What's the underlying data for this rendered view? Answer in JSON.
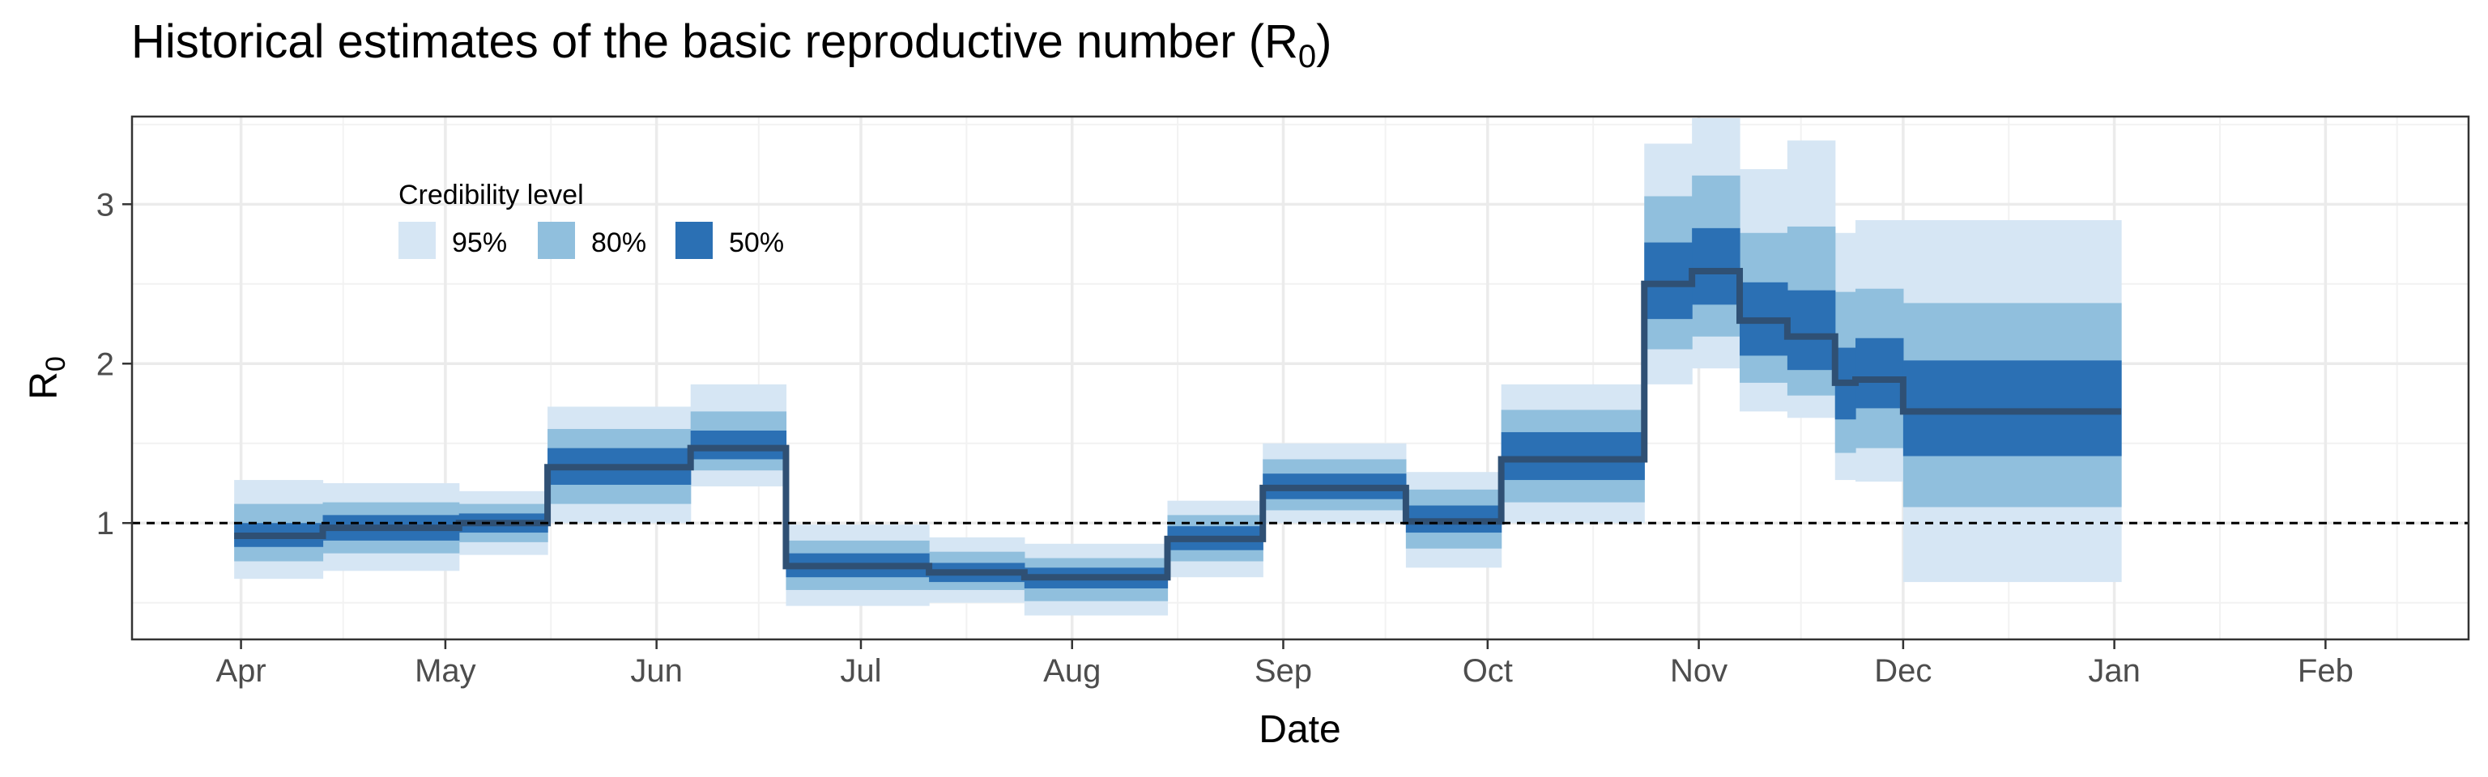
{
  "chart_data": {
    "type": "area",
    "title_text": "Historical estimates of the basic reproductive number (R",
    "title_subscript": "0",
    "title_close": ")",
    "xlabel": "Date",
    "ylabel_main": "R",
    "ylabel_sub": "0",
    "x_ticks": [
      "Apr",
      "May",
      "Jun",
      "Jul",
      "Aug",
      "Sep",
      "Oct",
      "Nov",
      "Dec",
      "Jan",
      "Feb"
    ],
    "y_ticks": [
      1,
      2,
      3
    ],
    "ylim": [
      0.27,
      3.55
    ],
    "reference_line": 1,
    "grid": true,
    "legend": {
      "title": "Credibility level",
      "position": "top-left",
      "items": [
        {
          "label": "95%",
          "color": "#d6e6f4"
        },
        {
          "label": "80%",
          "color": "#90bfdd"
        },
        {
          "label": "50%",
          "color": "#2b70b4"
        }
      ]
    },
    "colors": {
      "median": "#2f5074",
      "ci95": "#d6e6f4",
      "ci80": "#90bfdd",
      "ci50": "#2b70b4"
    },
    "series": [
      {
        "start": "Mar 31",
        "end": "Apr 13",
        "median": 0.92,
        "lo95": 0.65,
        "hi95": 1.27,
        "lo80": 0.76,
        "hi80": 1.12,
        "lo50": 0.85,
        "hi50": 1.0
      },
      {
        "start": "Apr 13",
        "end": "May 3",
        "median": 0.97,
        "lo95": 0.7,
        "hi95": 1.25,
        "lo80": 0.81,
        "hi80": 1.13,
        "lo50": 0.89,
        "hi50": 1.05
      },
      {
        "start": "May 3",
        "end": "May 16",
        "median": 1.0,
        "lo95": 0.8,
        "hi95": 1.2,
        "lo80": 0.88,
        "hi80": 1.12,
        "lo50": 0.94,
        "hi50": 1.06
      },
      {
        "start": "May 16",
        "end": "Jun 6",
        "median": 1.35,
        "lo95": 1.0,
        "hi95": 1.73,
        "lo80": 1.12,
        "hi80": 1.59,
        "lo50": 1.24,
        "hi50": 1.47
      },
      {
        "start": "Jun 6",
        "end": "Jun 20",
        "median": 1.47,
        "lo95": 1.23,
        "hi95": 1.87,
        "lo80": 1.33,
        "hi80": 1.7,
        "lo50": 1.4,
        "hi50": 1.58
      },
      {
        "start": "Jun 20",
        "end": "Jul 11",
        "median": 0.73,
        "lo95": 0.48,
        "hi95": 0.99,
        "lo80": 0.58,
        "hi80": 0.89,
        "lo50": 0.66,
        "hi50": 0.81
      },
      {
        "start": "Jul 11",
        "end": "Jul 25",
        "median": 0.69,
        "lo95": 0.5,
        "hi95": 0.91,
        "lo80": 0.58,
        "hi80": 0.82,
        "lo50": 0.63,
        "hi50": 0.75
      },
      {
        "start": "Jul 25",
        "end": "Aug 15",
        "median": 0.66,
        "lo95": 0.42,
        "hi95": 0.87,
        "lo80": 0.51,
        "hi80": 0.78,
        "lo50": 0.59,
        "hi50": 0.72
      },
      {
        "start": "Aug 15",
        "end": "Aug 29",
        "median": 0.9,
        "lo95": 0.66,
        "hi95": 1.14,
        "lo80": 0.76,
        "hi80": 1.05,
        "lo50": 0.83,
        "hi50": 0.98
      },
      {
        "start": "Aug 29",
        "end": "Sep 19",
        "median": 1.22,
        "lo95": 1.0,
        "hi95": 1.5,
        "lo80": 1.08,
        "hi80": 1.4,
        "lo50": 1.15,
        "hi50": 1.31
      },
      {
        "start": "Sep 19",
        "end": "Oct 3",
        "median": 1.01,
        "lo95": 0.72,
        "hi95": 1.32,
        "lo80": 0.84,
        "hi80": 1.21,
        "lo50": 0.94,
        "hi50": 1.11
      },
      {
        "start": "Oct 3",
        "end": "Oct 24",
        "median": 1.4,
        "lo95": 1.0,
        "hi95": 1.87,
        "lo80": 1.13,
        "hi80": 1.71,
        "lo50": 1.27,
        "hi50": 1.57
      },
      {
        "start": "Oct 24",
        "end": "Oct 31",
        "median": 2.5,
        "lo95": 1.87,
        "hi95": 3.38,
        "lo80": 2.09,
        "hi80": 3.05,
        "lo50": 2.28,
        "hi50": 2.76
      },
      {
        "start": "Oct 31",
        "end": "Nov 7",
        "median": 2.58,
        "lo95": 1.97,
        "hi95": 3.54,
        "lo80": 2.17,
        "hi80": 3.18,
        "lo50": 2.37,
        "hi50": 2.85
      },
      {
        "start": "Nov 7",
        "end": "Nov 14",
        "median": 2.27,
        "lo95": 1.7,
        "hi95": 3.22,
        "lo80": 1.88,
        "hi80": 2.82,
        "lo50": 2.05,
        "hi50": 2.51
      },
      {
        "start": "Nov 14",
        "end": "Nov 21",
        "median": 2.17,
        "lo95": 1.66,
        "hi95": 3.4,
        "lo80": 1.8,
        "hi80": 2.86,
        "lo50": 1.96,
        "hi50": 2.46
      },
      {
        "start": "Nov 21",
        "end": "Nov 24",
        "median": 1.88,
        "lo95": 1.27,
        "hi95": 2.82,
        "lo80": 1.44,
        "hi80": 2.45,
        "lo50": 1.65,
        "hi50": 2.1
      },
      {
        "start": "Nov 24",
        "end": "Dec 1",
        "median": 1.9,
        "lo95": 1.26,
        "hi95": 2.9,
        "lo80": 1.47,
        "hi80": 2.47,
        "lo50": 1.72,
        "hi50": 2.16
      },
      {
        "start": "Dec 1",
        "end": "Jan 2",
        "median": 1.7,
        "lo95": 0.63,
        "hi95": 2.9,
        "lo80": 1.1,
        "hi80": 2.38,
        "lo50": 1.42,
        "hi50": 2.02
      }
    ]
  }
}
